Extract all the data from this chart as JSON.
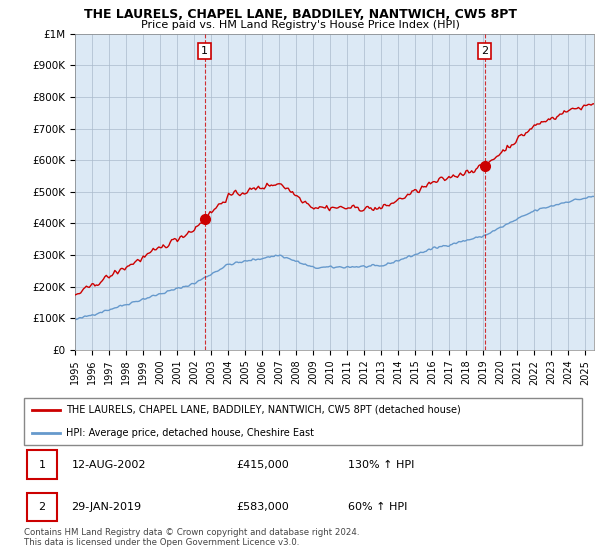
{
  "title": "THE LAURELS, CHAPEL LANE, BADDILEY, NANTWICH, CW5 8PT",
  "subtitle": "Price paid vs. HM Land Registry's House Price Index (HPI)",
  "ylabel_ticks": [
    "£0",
    "£100K",
    "£200K",
    "£300K",
    "£400K",
    "£500K",
    "£600K",
    "£700K",
    "£800K",
    "£900K",
    "£1M"
  ],
  "ytick_values": [
    0,
    100000,
    200000,
    300000,
    400000,
    500000,
    600000,
    700000,
    800000,
    900000,
    1000000
  ],
  "ylim": [
    0,
    1000000
  ],
  "xlim_start": 1995.0,
  "xlim_end": 2025.5,
  "xtick_years": [
    1995,
    1996,
    1997,
    1998,
    1999,
    2000,
    2001,
    2002,
    2003,
    2004,
    2005,
    2006,
    2007,
    2008,
    2009,
    2010,
    2011,
    2012,
    2013,
    2014,
    2015,
    2016,
    2017,
    2018,
    2019,
    2020,
    2021,
    2022,
    2023,
    2024,
    2025
  ],
  "sale1_x": 2002.617,
  "sale1_y": 415000,
  "sale1_label": "1",
  "sale2_x": 2019.083,
  "sale2_y": 583000,
  "sale2_label": "2",
  "red_line_color": "#cc0000",
  "blue_line_color": "#6699cc",
  "chart_bg_color": "#dce9f5",
  "vline_color": "#cc0000",
  "marker_color": "#cc0000",
  "legend_red_label": "THE LAURELS, CHAPEL LANE, BADDILEY, NANTWICH, CW5 8PT (detached house)",
  "legend_blue_label": "HPI: Average price, detached house, Cheshire East",
  "table_row1": [
    "1",
    "12-AUG-2002",
    "£415,000",
    "130% ↑ HPI"
  ],
  "table_row2": [
    "2",
    "29-JAN-2019",
    "£583,000",
    "60% ↑ HPI"
  ],
  "footer": "Contains HM Land Registry data © Crown copyright and database right 2024.\nThis data is licensed under the Open Government Licence v3.0.",
  "background_color": "#ffffff",
  "grid_color": "#aabbcc"
}
